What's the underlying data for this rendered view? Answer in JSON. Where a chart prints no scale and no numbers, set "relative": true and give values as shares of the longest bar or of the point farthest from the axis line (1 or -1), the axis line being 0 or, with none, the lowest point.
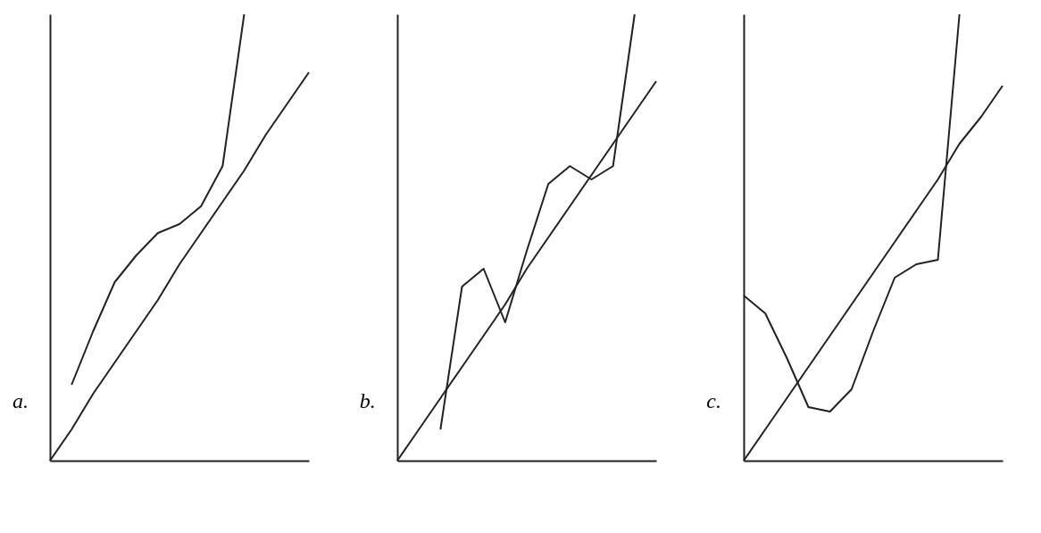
{
  "chart_data": [
    {
      "type": "line",
      "relative": true,
      "categories": [
        null,
        null,
        null,
        null,
        null,
        null,
        null,
        null,
        null,
        null,
        null,
        null,
        null
      ],
      "series": [
        {
          "color": "#222222",
          "values": [
            0,
            0.07,
            0.15,
            0.22,
            0.29,
            0.36,
            0.44,
            0.51,
            0.58,
            0.65,
            0.73,
            0.8,
            0.87
          ]
        },
        {
          "color": "#222222",
          "values": [
            null,
            0.17,
            0.29,
            0.4,
            0.46,
            0.51,
            0.53,
            0.57,
            0.66,
            1.0,
            null,
            null,
            null
          ]
        }
      ],
      "annotations": [
        "a."
      ],
      "legend": false,
      "grid": false,
      "marker": "none"
    },
    {
      "type": "line",
      "relative": true,
      "categories": [
        null,
        null,
        null,
        null,
        null,
        null,
        null,
        null,
        null,
        null,
        null,
        null,
        null
      ],
      "series": [
        {
          "color": "#222222",
          "values": [
            0,
            0.07,
            0.14,
            0.21,
            0.28,
            0.35,
            0.43,
            0.5,
            0.57,
            0.64,
            0.71,
            0.78,
            0.85
          ]
        },
        {
          "color": "#222222",
          "values": [
            null,
            null,
            0.07,
            0.39,
            0.43,
            0.31,
            0.47,
            0.62,
            0.66,
            0.63,
            0.66,
            1.0,
            null
          ]
        }
      ],
      "annotations": [
        "b."
      ],
      "legend": false,
      "grid": false,
      "marker": "none"
    },
    {
      "type": "line",
      "relative": true,
      "categories": [
        null,
        null,
        null,
        null,
        null,
        null,
        null,
        null,
        null,
        null,
        null,
        null,
        null
      ],
      "series": [
        {
          "color": "#222222",
          "values": [
            0,
            0.07,
            0.14,
            0.21,
            0.28,
            0.35,
            0.42,
            0.49,
            0.56,
            0.63,
            0.71,
            0.77,
            0.84
          ]
        },
        {
          "color": "#222222",
          "values": [
            0.37,
            0.33,
            0.23,
            0.12,
            0.11,
            0.16,
            0.29,
            0.41,
            0.44,
            0.45,
            1.0,
            null,
            null
          ]
        }
      ],
      "annotations": [
        "c."
      ],
      "legend": false,
      "grid": false,
      "marker": "none"
    }
  ]
}
